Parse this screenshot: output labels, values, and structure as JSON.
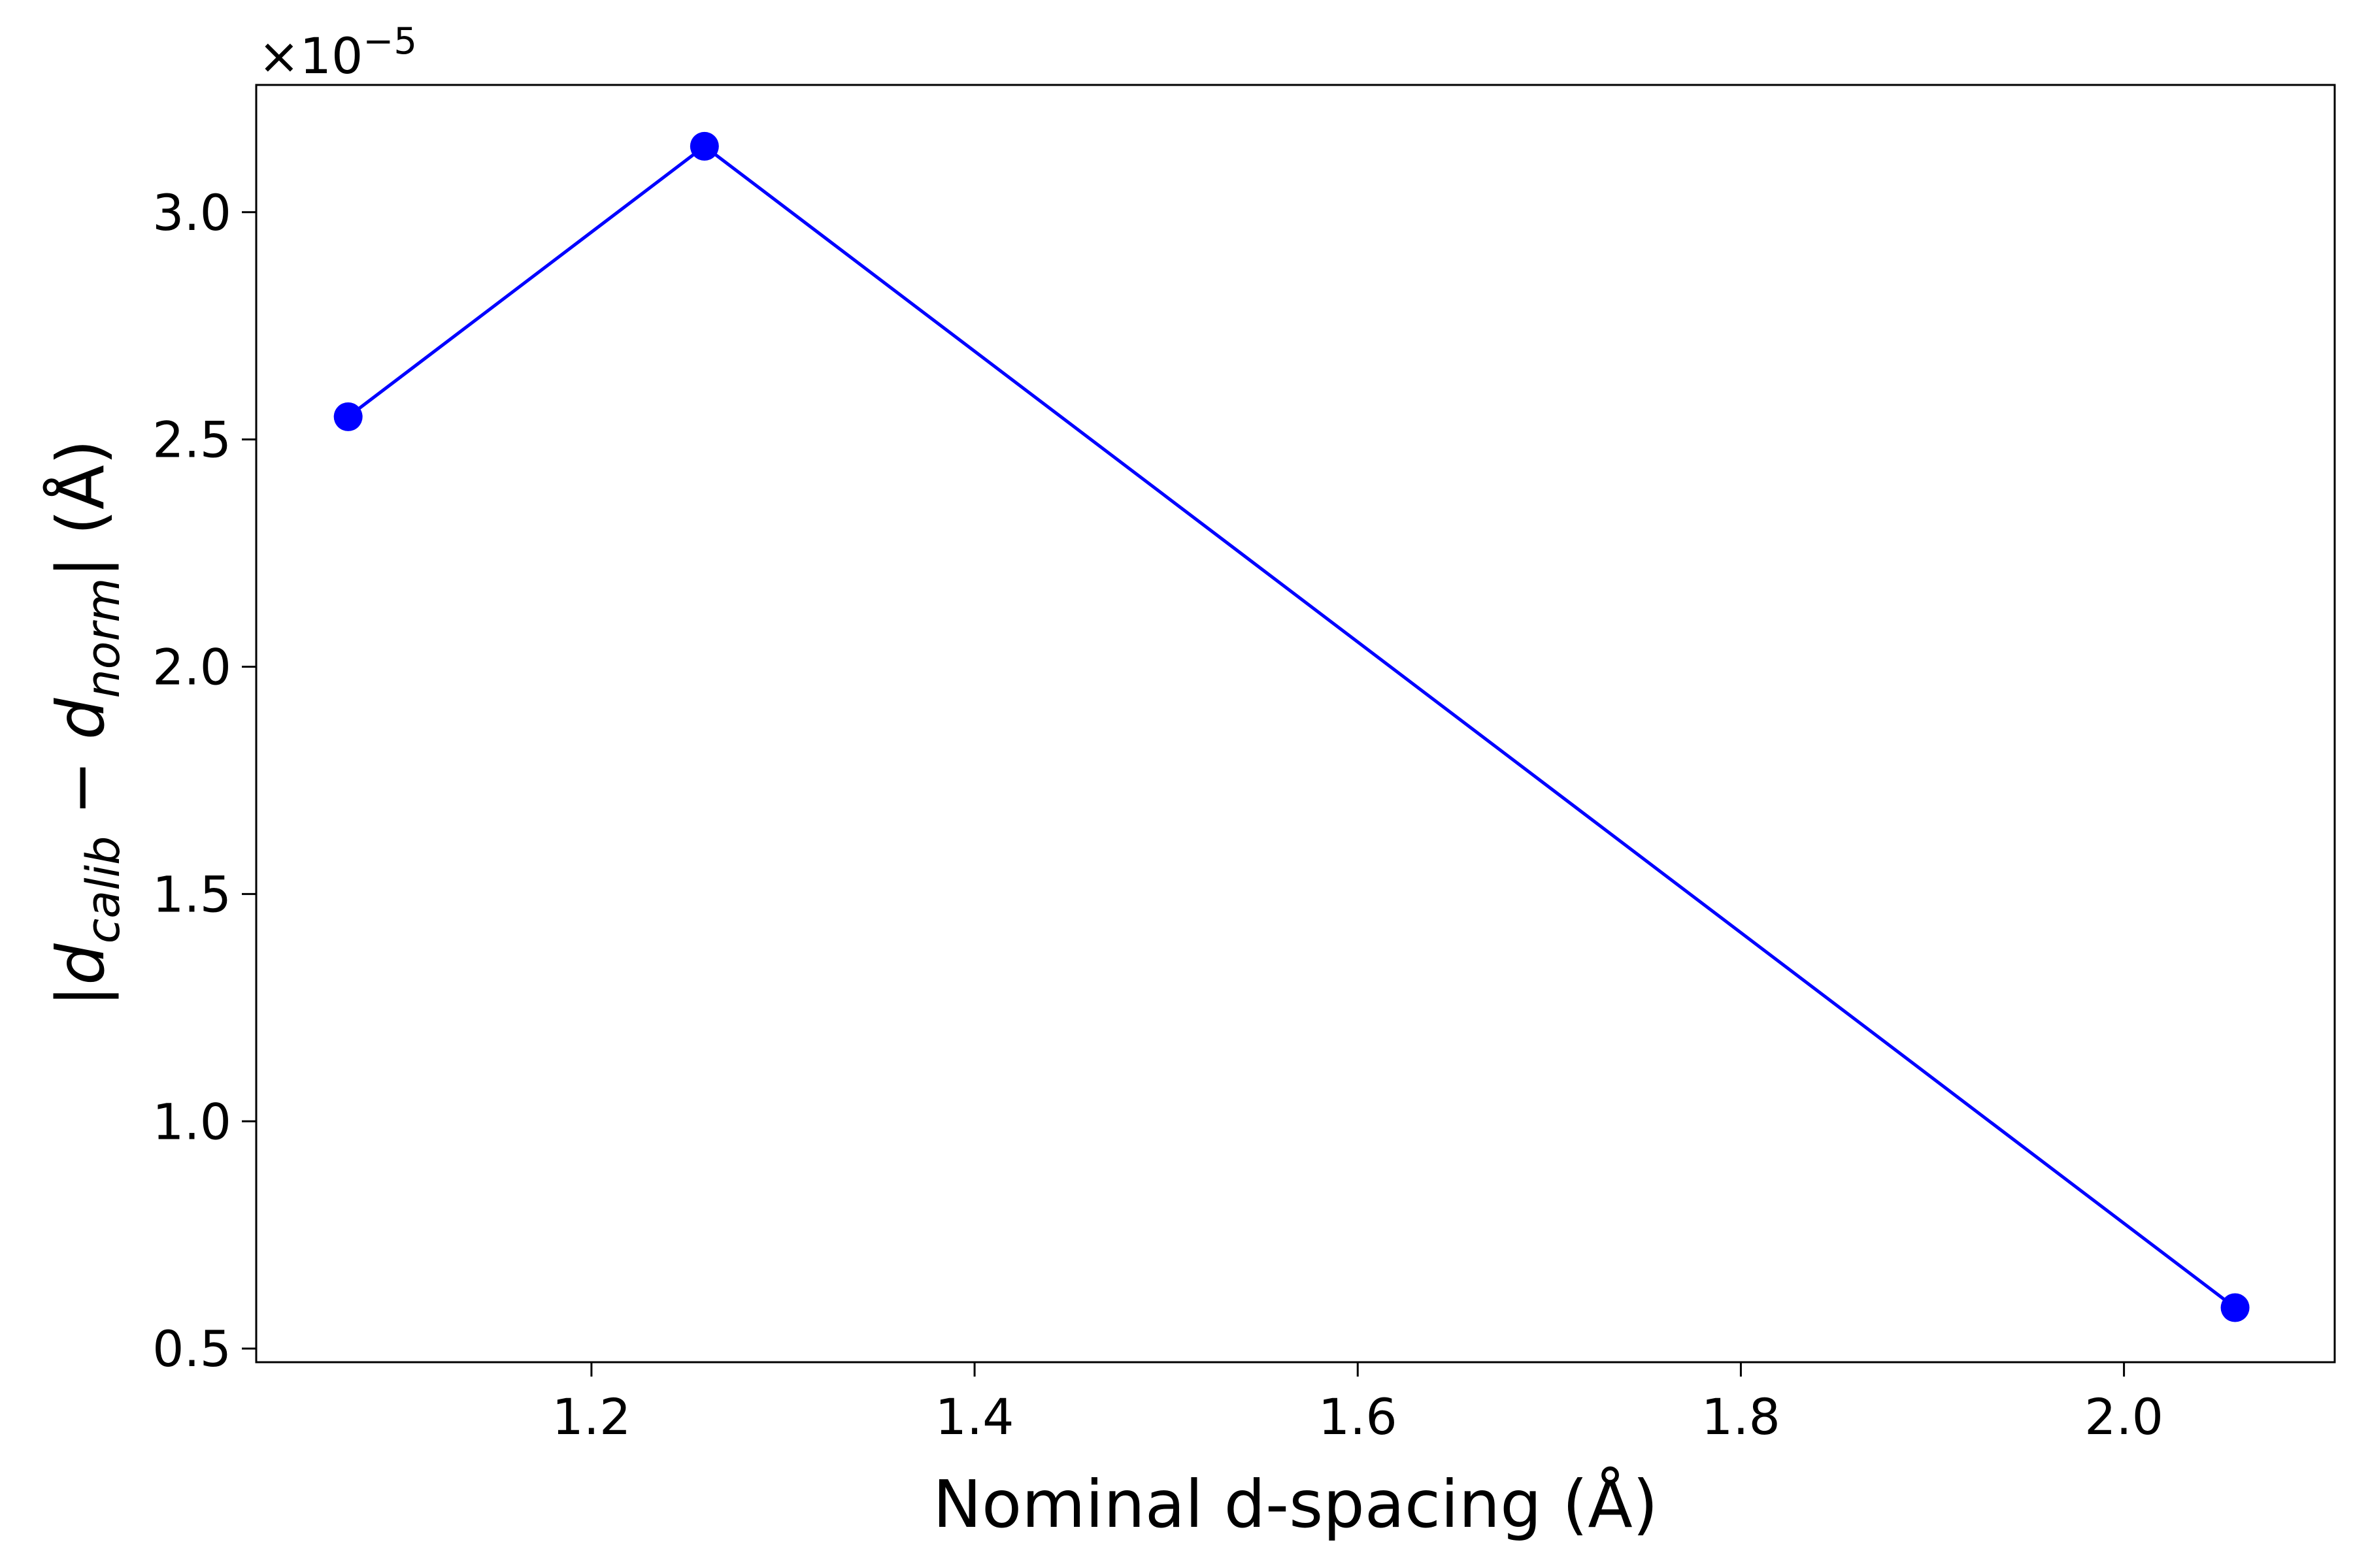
{
  "chart_data": {
    "type": "line",
    "title": "",
    "xlabel": "Nominal d-spacing (Å)",
    "ylabel": {
      "prefix": "|d",
      "sub1": "calib",
      "middle": " − d",
      "sub2": "norm",
      "suffix": "| (Å)"
    },
    "y_offset_label": "×10",
    "y_offset_exponent": "−5",
    "xlim": [
      1.025,
      2.11
    ],
    "ylim": [
      0.47,
      3.28
    ],
    "xticks": [
      1.2,
      1.4,
      1.6,
      1.8,
      2.0
    ],
    "xtick_labels": [
      "1.2",
      "1.4",
      "1.6",
      "1.8",
      "2.0"
    ],
    "yticks": [
      0.5,
      1.0,
      1.5,
      2.0,
      2.5,
      3.0
    ],
    "ytick_labels": [
      "0.5",
      "1.0",
      "1.5",
      "2.0",
      "2.5",
      "3.0"
    ],
    "grid": false,
    "legend": "none",
    "series": [
      {
        "color": "#0000ff",
        "marker": "circle",
        "x": [
          1.073,
          1.259,
          2.058
        ],
        "y": [
          2.55,
          3.145,
          0.59
        ]
      }
    ]
  }
}
